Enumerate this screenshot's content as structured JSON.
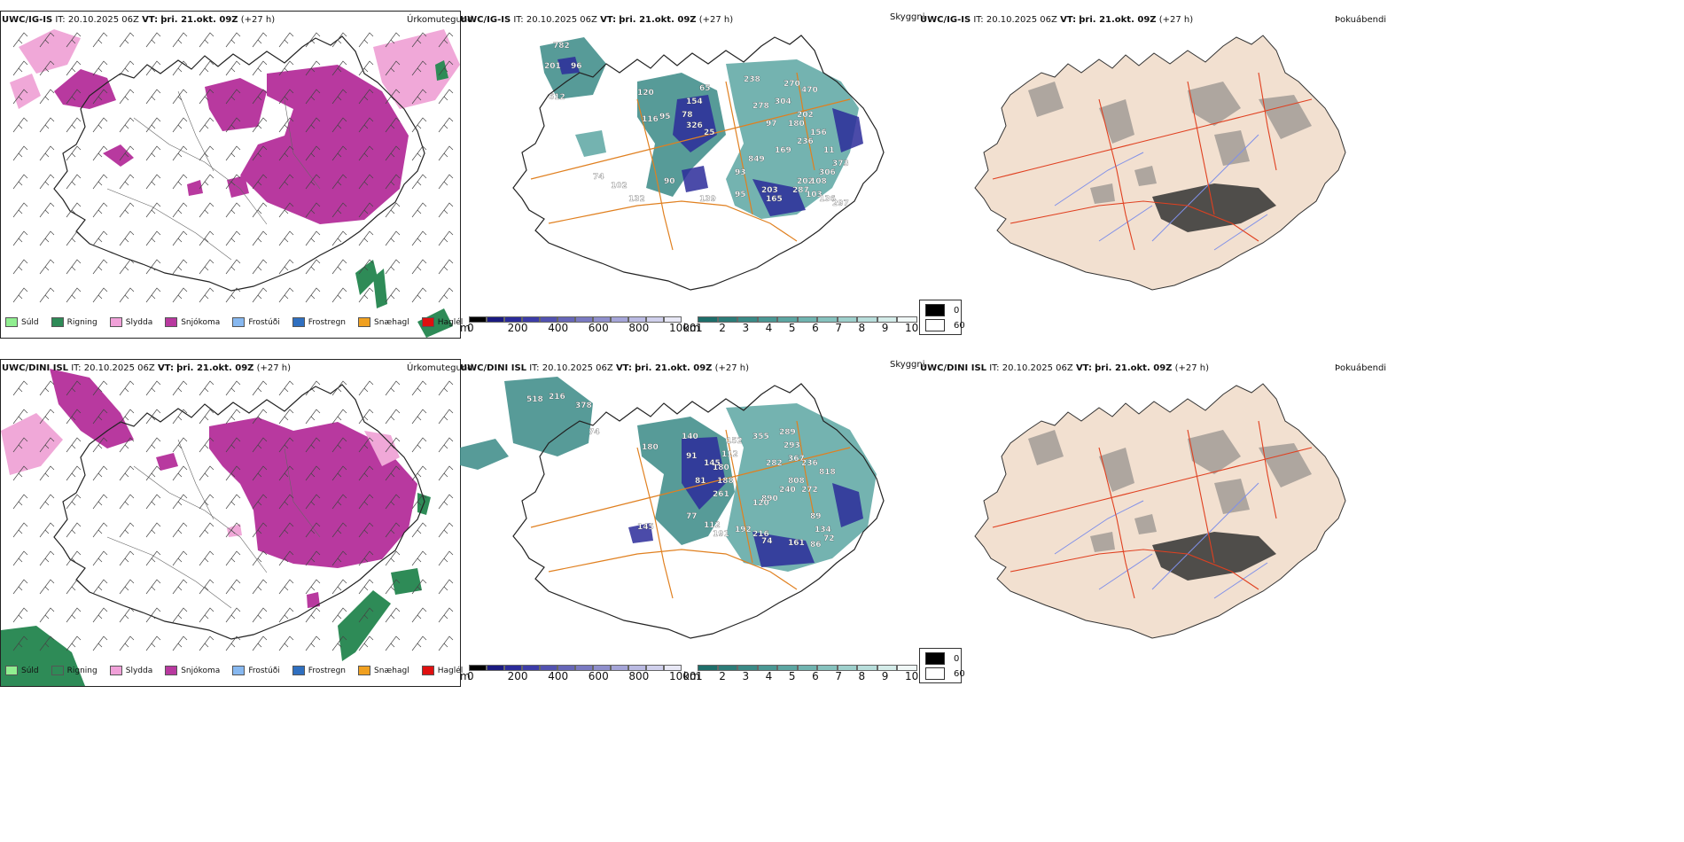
{
  "rows": [
    {
      "model": "UWC/IG-IS",
      "it_label": "IT:",
      "it_value": "20.10.2025 06Z",
      "vt_label": "VT:",
      "vt_value": "þri. 21.okt. 09Z",
      "lead": "(+27 h)"
    },
    {
      "model": "UWC/DINI ISL",
      "it_label": "IT:",
      "it_value": "20.10.2025 06Z",
      "vt_label": "VT:",
      "vt_value": "þri. 21.okt. 09Z",
      "lead": "(+27 h)"
    }
  ],
  "panel_titles": {
    "precip": "Úrkomutegund",
    "clouds": "Skyggni",
    "fog": "Þokuábendi"
  },
  "precip_legend": [
    {
      "label": "Súld",
      "color": "#90ee90"
    },
    {
      "label": "Rigning",
      "color": "#2e8b57"
    },
    {
      "label": "Slydda",
      "color": "#f0a0d8"
    },
    {
      "label": "Snjókoma",
      "color": "#b8399f"
    },
    {
      "label": "Frostúði",
      "color": "#87b8f0"
    },
    {
      "label": "Frostregn",
      "color": "#2f6fc0"
    },
    {
      "label": "Snæhagl",
      "color": "#f0a020"
    },
    {
      "label": "Haglél",
      "color": "#e01010"
    }
  ],
  "cloudbase_bar": {
    "unit": "m",
    "ticks": [
      "0",
      "200",
      "400",
      "600",
      "800",
      "1000"
    ],
    "colors": [
      "#000000",
      "#1a1a80",
      "#2b2b9a",
      "#3c3ca8",
      "#5252b0",
      "#6666b8",
      "#7a7ac2",
      "#8f8fcc",
      "#a5a5d8",
      "#babae2",
      "#d0d0ec",
      "#e8e8f6"
    ]
  },
  "visibility_bar": {
    "unit": "km",
    "ticks": [
      "1",
      "2",
      "3",
      "4",
      "5",
      "6",
      "7",
      "8",
      "9",
      "10"
    ],
    "colors": [
      "#1e6e6a",
      "#2c7c78",
      "#3a8a86",
      "#4a9894",
      "#5ca6a2",
      "#70b4b0",
      "#86c2be",
      "#9ed0cc",
      "#b8dedb",
      "#d4ece9",
      "#f0f8f7"
    ]
  },
  "fog_legend": [
    {
      "label": "0",
      "color": "#000000"
    },
    {
      "label": "60",
      "color": "#ffffff"
    }
  ],
  "cloud_labels": [
    [
      "782",
      "201",
      "96",
      "612",
      "120",
      "116",
      "95",
      "65",
      "154",
      "78",
      "326",
      "25",
      "238",
      "278",
      "270",
      "470",
      "304",
      "202",
      "97",
      "180",
      "156",
      "236",
      "169",
      "849",
      "93",
      "11",
      "373",
      "306",
      "202",
      "108",
      "287",
      "203",
      "95",
      "139",
      "165",
      "103",
      "136",
      "297",
      "90",
      "132",
      "102",
      "74"
    ],
    [
      "518",
      "216",
      "378",
      "74",
      "180",
      "140",
      "91",
      "145",
      "152",
      "112",
      "180",
      "188",
      "261",
      "81",
      "355",
      "289",
      "293",
      "367",
      "236",
      "818",
      "282",
      "808",
      "272",
      "240",
      "890",
      "120",
      "89",
      "134",
      "77",
      "112",
      "191",
      "192",
      "216",
      "74",
      "161",
      "86",
      "72",
      "145"
    ]
  ]
}
